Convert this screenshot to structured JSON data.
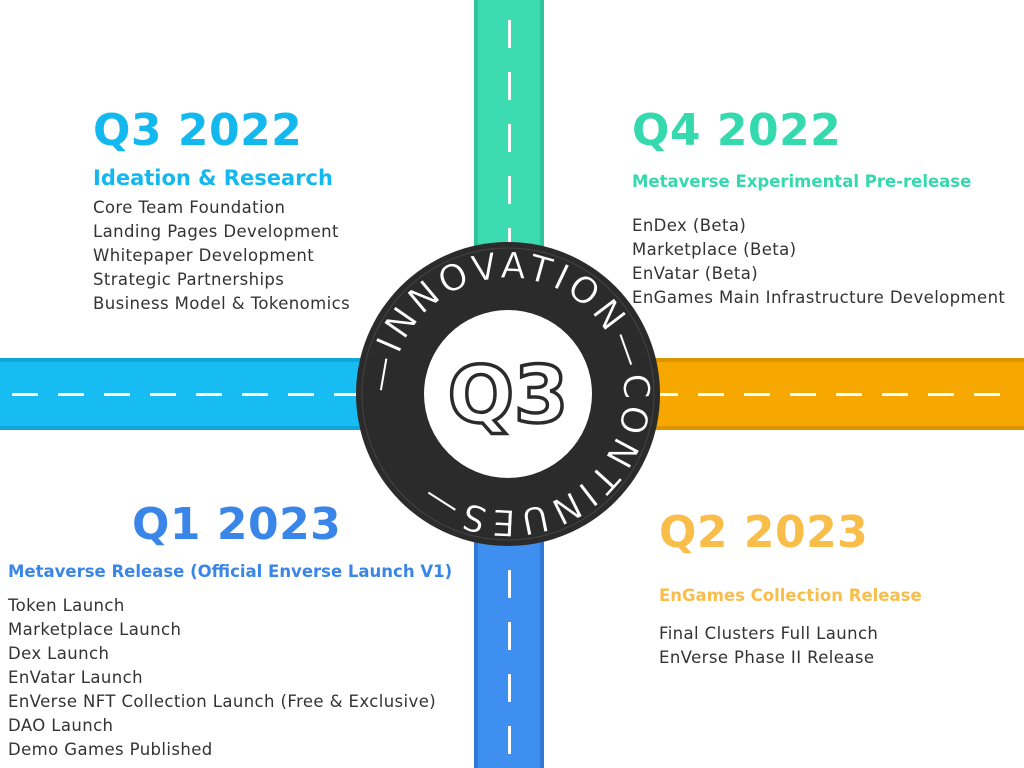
{
  "colors": {
    "road_top": "#3ddbb0",
    "road_left": "#17bdf2",
    "road_right": "#f7a800",
    "road_bottom": "#3f8ff0",
    "emblem_dark": "#2b2b2b"
  },
  "emblem": {
    "ring_text": "—INNOVATION—CONTINUES—",
    "center_label": "Q3"
  },
  "quarters": {
    "q3_2022": {
      "title": "Q3 2022",
      "subtitle": "Ideation & Research",
      "items": [
        "Core Team Foundation",
        "Landing Pages Development",
        "Whitepaper Development",
        "Strategic Partnerships",
        "Business Model & Tokenomics"
      ]
    },
    "q4_2022": {
      "title": "Q4 2022",
      "subtitle": "Metaverse Experimental Pre-release",
      "items": [
        "EnDex (Beta)",
        "Marketplace (Beta)",
        "EnVatar (Beta)",
        "EnGames Main Infrastructure Development"
      ]
    },
    "q1_2023": {
      "title": "Q1 2023",
      "subtitle": "Metaverse Release (Official Enverse Launch V1)",
      "items": [
        "Token Launch",
        "Marketplace Launch",
        "Dex Launch",
        "EnVatar Launch",
        "EnVerse NFT Collection Launch (Free & Exclusive)",
        "DAO Launch",
        "Demo Games Published"
      ]
    },
    "q2_2023": {
      "title": "Q2 2023",
      "subtitle": "EnGames Collection Release",
      "items": [
        "Final Clusters Full Launch",
        "EnVerse Phase II Release"
      ]
    }
  }
}
